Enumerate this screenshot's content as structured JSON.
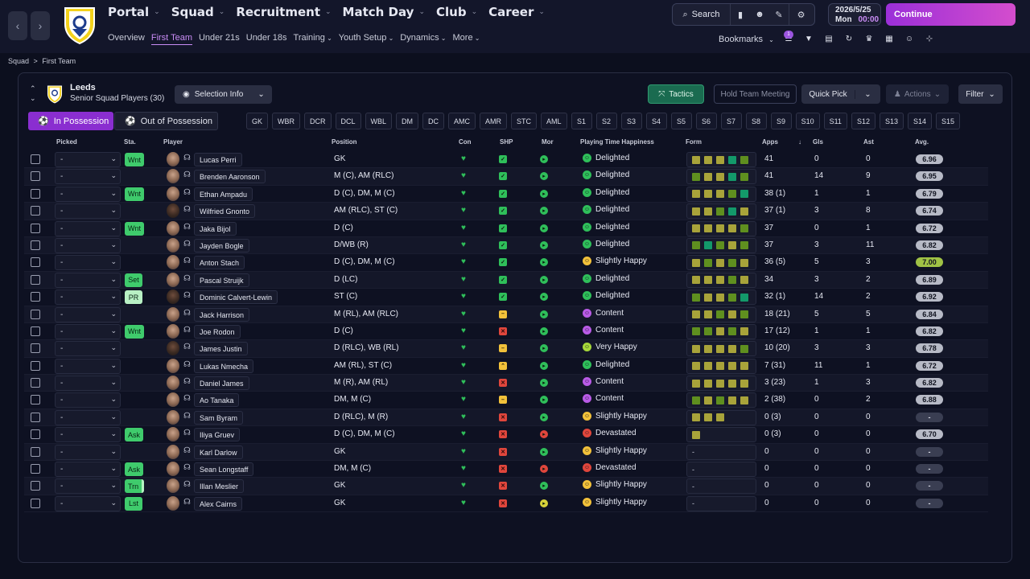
{
  "nav": {
    "back_icon": "chevron-left-icon",
    "forward_icon": "chevron-right-icon",
    "main": [
      {
        "label": "Portal",
        "active": false
      },
      {
        "label": "Squad",
        "active": true
      },
      {
        "label": "Recruitment",
        "active": false
      },
      {
        "label": "Match Day",
        "active": false
      },
      {
        "label": "Club",
        "active": false
      },
      {
        "label": "Career",
        "active": false
      }
    ],
    "sub": [
      {
        "label": "Overview",
        "active": false
      },
      {
        "label": "First Team",
        "active": true
      },
      {
        "label": "Under 21s",
        "active": false
      },
      {
        "label": "Under 18s",
        "active": false
      },
      {
        "label": "Training",
        "active": false,
        "dropdown": true
      },
      {
        "label": "Youth Setup",
        "active": false,
        "dropdown": true
      },
      {
        "label": "Dynamics",
        "active": false,
        "dropdown": true
      },
      {
        "label": "More",
        "active": false,
        "dropdown": true
      }
    ]
  },
  "toolbar": {
    "search_label": "Search",
    "date": "2026/5/25",
    "day": "Mon",
    "time": "00:00",
    "continue_label": "Continue",
    "bookmarks_label": "Bookmarks",
    "badge": "1"
  },
  "breadcrumb": {
    "root": "Squad",
    "sep": ">",
    "current": "First Team"
  },
  "team": {
    "name": "Leeds",
    "subtitle": "Senior Squad Players (30)"
  },
  "buttons": {
    "selection_info": "Selection Info",
    "tactics": "Tactics",
    "hold_meeting": "Hold Team Meeting",
    "quick_pick": "Quick Pick",
    "actions": "Actions",
    "filter": "Filter",
    "in_possession": "In Possession",
    "out_of_possession": "Out of Possession"
  },
  "position_filters": [
    "GK",
    "WBR",
    "DCR",
    "DCL",
    "WBL",
    "DM",
    "DC",
    "AMC",
    "AMR",
    "STC",
    "AML",
    "S1",
    "S2",
    "S3",
    "S4",
    "S5",
    "S6",
    "S7",
    "S8",
    "S9",
    "S10",
    "S11",
    "S12",
    "S13",
    "S14",
    "S15"
  ],
  "columns": {
    "picked": "Picked",
    "sta": "Sta.",
    "player": "Player",
    "position": "Position",
    "con": "Con",
    "shp": "SHP",
    "mor": "Mor",
    "happiness": "Playing Time Happiness",
    "form": "Form",
    "apps": "Apps",
    "gls": "Gls",
    "ast": "Ast",
    "avg": "Avg."
  },
  "colors": {
    "accent": "#c98cf5",
    "status_green": "#3fcb6c",
    "form_olive": "#a8a33a",
    "form_green": "#5f8f1f",
    "form_teal": "#13996a"
  },
  "players": [
    {
      "picked": "-",
      "sta": "Wnt",
      "name": "Lucas Perri",
      "pos": "GK",
      "shp": "tick",
      "mor": "good",
      "happy": "Delighted",
      "form": [
        "o",
        "o",
        "o",
        "t",
        "g"
      ],
      "apps": "41",
      "gls": "0",
      "ast": "0",
      "avg": "6.96"
    },
    {
      "picked": "-",
      "sta": "",
      "name": "Brenden Aaronson",
      "pos": "M (C), AM (RLC)",
      "shp": "tick",
      "mor": "good",
      "happy": "Delighted",
      "form": [
        "g",
        "o",
        "o",
        "t",
        "g"
      ],
      "apps": "41",
      "gls": "14",
      "ast": "9",
      "avg": "6.95"
    },
    {
      "picked": "-",
      "sta": "Wnt",
      "name": "Ethan Ampadu",
      "pos": "D (C), DM, M (C)",
      "shp": "tick",
      "mor": "good",
      "happy": "Delighted",
      "form": [
        "o",
        "o",
        "o",
        "g",
        "t"
      ],
      "apps": "38 (1)",
      "gls": "1",
      "ast": "1",
      "avg": "6.79"
    },
    {
      "picked": "-",
      "sta": "",
      "name": "Wilfried Gnonto",
      "pos": "AM (RLC), ST (C)",
      "shp": "tick",
      "mor": "good",
      "happy": "Delighted",
      "form": [
        "o",
        "o",
        "g",
        "t",
        "o"
      ],
      "apps": "37 (1)",
      "gls": "3",
      "ast": "8",
      "avg": "6.74"
    },
    {
      "picked": "-",
      "sta": "Wnt",
      "name": "Jaka Bijol",
      "pos": "D (C)",
      "shp": "tick",
      "mor": "good",
      "happy": "Delighted",
      "form": [
        "o",
        "o",
        "o",
        "o",
        "g"
      ],
      "apps": "37",
      "gls": "0",
      "ast": "1",
      "avg": "6.72"
    },
    {
      "picked": "-",
      "sta": "",
      "name": "Jayden Bogle",
      "pos": "D/WB (R)",
      "shp": "tick",
      "mor": "good",
      "happy": "Delighted",
      "form": [
        "g",
        "t",
        "g",
        "o",
        "g"
      ],
      "apps": "37",
      "gls": "3",
      "ast": "11",
      "avg": "6.82"
    },
    {
      "picked": "-",
      "sta": "",
      "name": "Anton Stach",
      "pos": "D (C), DM, M (C)",
      "shp": "tick",
      "mor": "good",
      "happy": "Slightly Happy",
      "form": [
        "o",
        "g",
        "o",
        "g",
        "o"
      ],
      "apps": "36 (5)",
      "gls": "5",
      "ast": "3",
      "avg": "7.00"
    },
    {
      "picked": "-",
      "sta": "Set",
      "name": "Pascal Struijk",
      "pos": "D (LC)",
      "shp": "tick",
      "mor": "good",
      "happy": "Delighted",
      "form": [
        "o",
        "o",
        "o",
        "g",
        "o"
      ],
      "apps": "34",
      "gls": "3",
      "ast": "2",
      "avg": "6.89"
    },
    {
      "picked": "-",
      "sta": "PR",
      "name": "Dominic Calvert-Lewin",
      "pos": "ST (C)",
      "shp": "tick",
      "mor": "good",
      "happy": "Delighted",
      "form": [
        "g",
        "o",
        "o",
        "g",
        "t"
      ],
      "apps": "32 (1)",
      "gls": "14",
      "ast": "2",
      "avg": "6.92"
    },
    {
      "picked": "-",
      "sta": "",
      "name": "Jack Harrison",
      "pos": "M (RL), AM (RLC)",
      "shp": "dash",
      "mor": "good",
      "happy": "Content",
      "form": [
        "o",
        "o",
        "g",
        "o",
        "g"
      ],
      "apps": "18 (21)",
      "gls": "5",
      "ast": "5",
      "avg": "6.84"
    },
    {
      "picked": "-",
      "sta": "Wnt",
      "name": "Joe Rodon",
      "pos": "D (C)",
      "shp": "cross",
      "mor": "good",
      "happy": "Content",
      "form": [
        "g",
        "g",
        "o",
        "g",
        "o"
      ],
      "apps": "17 (12)",
      "gls": "1",
      "ast": "1",
      "avg": "6.82"
    },
    {
      "picked": "-",
      "sta": "",
      "name": "James Justin",
      "pos": "D (RLC), WB (RL)",
      "shp": "dash",
      "mor": "good",
      "happy": "Very Happy",
      "form": [
        "o",
        "o",
        "o",
        "o",
        "g"
      ],
      "apps": "10 (20)",
      "gls": "3",
      "ast": "3",
      "avg": "6.78"
    },
    {
      "picked": "-",
      "sta": "",
      "name": "Lukas Nmecha",
      "pos": "AM (RL), ST (C)",
      "shp": "up",
      "mor": "good",
      "happy": "Delighted",
      "form": [
        "o",
        "o",
        "o",
        "o",
        "o"
      ],
      "apps": "7 (31)",
      "gls": "11",
      "ast": "1",
      "avg": "6.72"
    },
    {
      "picked": "-",
      "sta": "",
      "name": "Daniel James",
      "pos": "M (R), AM (RL)",
      "shp": "cross",
      "mor": "good",
      "happy": "Content",
      "form": [
        "o",
        "o",
        "o",
        "o",
        "o"
      ],
      "apps": "3 (23)",
      "gls": "1",
      "ast": "3",
      "avg": "6.82"
    },
    {
      "picked": "-",
      "sta": "",
      "name": "Ao Tanaka",
      "pos": "DM, M (C)",
      "shp": "dash",
      "mor": "good",
      "happy": "Content",
      "form": [
        "g",
        "o",
        "g",
        "o",
        "o"
      ],
      "apps": "2 (38)",
      "gls": "0",
      "ast": "2",
      "avg": "6.88"
    },
    {
      "picked": "-",
      "sta": "",
      "name": "Sam Byram",
      "pos": "D (RLC), M (R)",
      "shp": "cross",
      "mor": "good",
      "happy": "Slightly Happy",
      "form": [
        "o",
        "o",
        "o"
      ],
      "apps": "0 (3)",
      "gls": "0",
      "ast": "0",
      "avg": "-"
    },
    {
      "picked": "-",
      "sta": "Ask",
      "name": "Iliya Gruev",
      "pos": "D (C), DM, M (C)",
      "shp": "cross",
      "mor": "bad",
      "happy": "Devastated",
      "form": [
        "o"
      ],
      "apps": "0 (3)",
      "gls": "0",
      "ast": "0",
      "avg": "6.70"
    },
    {
      "picked": "-",
      "sta": "",
      "name": "Karl Darlow",
      "pos": "GK",
      "shp": "cross",
      "mor": "good",
      "happy": "Slightly Happy",
      "form": [],
      "apps": "0",
      "gls": "0",
      "ast": "0",
      "avg": "-"
    },
    {
      "picked": "-",
      "sta": "Ask",
      "name": "Sean Longstaff",
      "pos": "DM, M (C)",
      "shp": "cross",
      "mor": "bad",
      "happy": "Devastated",
      "form": [],
      "apps": "0",
      "gls": "0",
      "ast": "0",
      "avg": "-"
    },
    {
      "picked": "-",
      "sta": "Trn",
      "name": "Illan Meslier",
      "pos": "GK",
      "shp": "cross",
      "mor": "good",
      "happy": "Slightly Happy",
      "form": [],
      "apps": "0",
      "gls": "0",
      "ast": "0",
      "avg": "-"
    },
    {
      "picked": "-",
      "sta": "Lst",
      "name": "Alex Cairns",
      "pos": "GK",
      "shp": "cross",
      "mor": "ok",
      "happy": "Slightly Happy",
      "form": [],
      "apps": "0",
      "gls": "0",
      "ast": "0",
      "avg": "-"
    }
  ]
}
